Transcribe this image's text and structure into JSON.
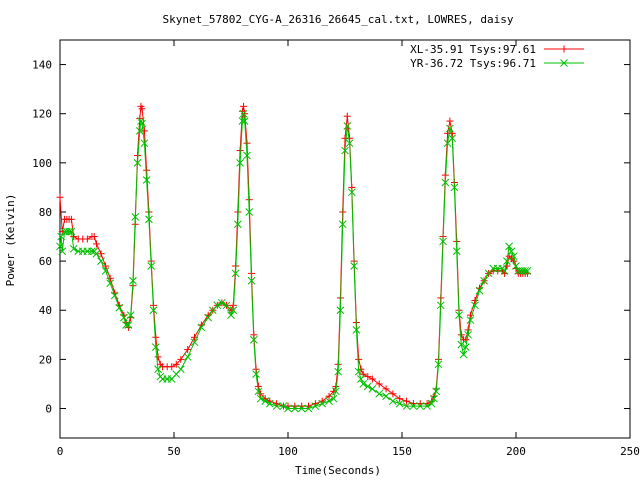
{
  "chart_data": {
    "type": "line",
    "title": "Skynet_57802_CYG-A_26316_26645_cal.txt, LOWRES, daisy",
    "xlabel": "Time(Seconds)",
    "ylabel": "Power (Kelvin)",
    "xlim": [
      0,
      250
    ],
    "ylim": [
      -12,
      150
    ],
    "xticks": [
      0,
      50,
      100,
      150,
      200,
      250
    ],
    "yticks": [
      0,
      20,
      40,
      60,
      80,
      100,
      120,
      140
    ],
    "grid": false,
    "legend_position": "top-right",
    "series": [
      {
        "name": "XL-35.91 Tsys:97.61",
        "color": "#ff0000",
        "marker": "plus",
        "points": [
          [
            0,
            86
          ],
          [
            1,
            72
          ],
          [
            2,
            77
          ],
          [
            3,
            77
          ],
          [
            4,
            77
          ],
          [
            5,
            77
          ],
          [
            6,
            70
          ],
          [
            8,
            69
          ],
          [
            10,
            69
          ],
          [
            12,
            69
          ],
          [
            14,
            70
          ],
          [
            15,
            70
          ],
          [
            16,
            67
          ],
          [
            18,
            63
          ],
          [
            20,
            58
          ],
          [
            22,
            53
          ],
          [
            24,
            47
          ],
          [
            26,
            42
          ],
          [
            28,
            38
          ],
          [
            29,
            35
          ],
          [
            30,
            33
          ],
          [
            31,
            37
          ],
          [
            32,
            50
          ],
          [
            33,
            75
          ],
          [
            34,
            103
          ],
          [
            35,
            118
          ],
          [
            35.5,
            123
          ],
          [
            36,
            122
          ],
          [
            37,
            113
          ],
          [
            38,
            97
          ],
          [
            39,
            80
          ],
          [
            40,
            60
          ],
          [
            41,
            42
          ],
          [
            42,
            29
          ],
          [
            43,
            21
          ],
          [
            44,
            18
          ],
          [
            45,
            17
          ],
          [
            47,
            17
          ],
          [
            49,
            17
          ],
          [
            51,
            18
          ],
          [
            53,
            20
          ],
          [
            56,
            24
          ],
          [
            59,
            29
          ],
          [
            62,
            34
          ],
          [
            65,
            38
          ],
          [
            67,
            40
          ],
          [
            69,
            42
          ],
          [
            71,
            43
          ],
          [
            73,
            42
          ],
          [
            75,
            40
          ],
          [
            76,
            42
          ],
          [
            77,
            58
          ],
          [
            78,
            80
          ],
          [
            79,
            105
          ],
          [
            80,
            121
          ],
          [
            80.5,
            123
          ],
          [
            81,
            120
          ],
          [
            82,
            108
          ],
          [
            83,
            85
          ],
          [
            84,
            55
          ],
          [
            85,
            30
          ],
          [
            86,
            16
          ],
          [
            87,
            9
          ],
          [
            88,
            6
          ],
          [
            90,
            4
          ],
          [
            92,
            3
          ],
          [
            95,
            2
          ],
          [
            98,
            1
          ],
          [
            100,
            1
          ],
          [
            103,
            1
          ],
          [
            106,
            1
          ],
          [
            109,
            1
          ],
          [
            112,
            2
          ],
          [
            115,
            3
          ],
          [
            118,
            5
          ],
          [
            120,
            7
          ],
          [
            121,
            9
          ],
          [
            122,
            18
          ],
          [
            123,
            45
          ],
          [
            124,
            80
          ],
          [
            125,
            110
          ],
          [
            126,
            119
          ],
          [
            127,
            110
          ],
          [
            128,
            90
          ],
          [
            129,
            60
          ],
          [
            130,
            35
          ],
          [
            131,
            20
          ],
          [
            132,
            16
          ],
          [
            133,
            14
          ],
          [
            135,
            13
          ],
          [
            137,
            12
          ],
          [
            140,
            10
          ],
          [
            143,
            8
          ],
          [
            146,
            6
          ],
          [
            149,
            4
          ],
          [
            152,
            3
          ],
          [
            155,
            2
          ],
          [
            158,
            2
          ],
          [
            161,
            2
          ],
          [
            163,
            3
          ],
          [
            164,
            5
          ],
          [
            165,
            8
          ],
          [
            166,
            20
          ],
          [
            167,
            45
          ],
          [
            168,
            70
          ],
          [
            169,
            95
          ],
          [
            170,
            112
          ],
          [
            171,
            117
          ],
          [
            172,
            112
          ],
          [
            173,
            92
          ],
          [
            174,
            68
          ],
          [
            175,
            40
          ],
          [
            176,
            30
          ],
          [
            177,
            28
          ],
          [
            178,
            28
          ],
          [
            179,
            32
          ],
          [
            180,
            38
          ],
          [
            182,
            44
          ],
          [
            184,
            49
          ],
          [
            186,
            52
          ],
          [
            188,
            55
          ],
          [
            190,
            56
          ],
          [
            192,
            56
          ],
          [
            194,
            56
          ],
          [
            195,
            55
          ],
          [
            196,
            58
          ],
          [
            197,
            62
          ],
          [
            198,
            61
          ],
          [
            199,
            60
          ],
          [
            200,
            57
          ],
          [
            201,
            55
          ],
          [
            202,
            55
          ],
          [
            203,
            55
          ],
          [
            204,
            55
          ],
          [
            205,
            55
          ]
        ]
      },
      {
        "name": "YR-36.72 Tsys:96.71",
        "color": "#00c000",
        "marker": "cross",
        "points": [
          [
            0,
            66
          ],
          [
            0.5,
            70
          ],
          [
            1,
            64
          ],
          [
            2,
            72
          ],
          [
            3,
            72
          ],
          [
            4,
            72
          ],
          [
            5,
            72
          ],
          [
            6,
            65
          ],
          [
            8,
            64
          ],
          [
            10,
            64
          ],
          [
            12,
            64
          ],
          [
            14,
            64
          ],
          [
            15,
            64
          ],
          [
            16,
            63
          ],
          [
            18,
            60
          ],
          [
            20,
            56
          ],
          [
            22,
            51
          ],
          [
            24,
            46
          ],
          [
            26,
            41
          ],
          [
            28,
            37
          ],
          [
            29,
            34
          ],
          [
            30,
            34
          ],
          [
            31,
            38
          ],
          [
            32,
            52
          ],
          [
            33,
            78
          ],
          [
            34,
            100
          ],
          [
            35,
            113
          ],
          [
            35.5,
            117
          ],
          [
            36,
            116
          ],
          [
            37,
            108
          ],
          [
            38,
            93
          ],
          [
            39,
            77
          ],
          [
            40,
            58
          ],
          [
            41,
            40
          ],
          [
            42,
            25
          ],
          [
            43,
            16
          ],
          [
            44,
            13
          ],
          [
            45,
            12
          ],
          [
            47,
            12
          ],
          [
            49,
            12
          ],
          [
            51,
            14
          ],
          [
            53,
            16
          ],
          [
            56,
            21
          ],
          [
            59,
            27
          ],
          [
            62,
            33
          ],
          [
            65,
            37
          ],
          [
            67,
            40
          ],
          [
            69,
            42
          ],
          [
            71,
            43
          ],
          [
            73,
            42
          ],
          [
            75,
            38
          ],
          [
            76,
            40
          ],
          [
            77,
            55
          ],
          [
            78,
            75
          ],
          [
            79,
            100
          ],
          [
            80,
            117
          ],
          [
            80.5,
            120
          ],
          [
            81,
            117
          ],
          [
            82,
            103
          ],
          [
            83,
            80
          ],
          [
            84,
            52
          ],
          [
            85,
            28
          ],
          [
            86,
            14
          ],
          [
            87,
            7
          ],
          [
            88,
            4
          ],
          [
            90,
            3
          ],
          [
            92,
            2
          ],
          [
            95,
            1
          ],
          [
            98,
            1
          ],
          [
            100,
            0
          ],
          [
            103,
            0
          ],
          [
            106,
            0
          ],
          [
            109,
            0
          ],
          [
            112,
            1
          ],
          [
            115,
            2
          ],
          [
            118,
            3
          ],
          [
            120,
            4
          ],
          [
            121,
            7
          ],
          [
            122,
            15
          ],
          [
            123,
            40
          ],
          [
            124,
            75
          ],
          [
            125,
            105
          ],
          [
            126,
            115
          ],
          [
            127,
            108
          ],
          [
            128,
            88
          ],
          [
            129,
            58
          ],
          [
            130,
            32
          ],
          [
            131,
            15
          ],
          [
            132,
            12
          ],
          [
            133,
            10
          ],
          [
            135,
            9
          ],
          [
            137,
            8
          ],
          [
            140,
            6
          ],
          [
            143,
            5
          ],
          [
            146,
            3
          ],
          [
            149,
            2
          ],
          [
            152,
            1
          ],
          [
            155,
            1
          ],
          [
            158,
            1
          ],
          [
            161,
            1
          ],
          [
            163,
            2
          ],
          [
            164,
            4
          ],
          [
            165,
            7
          ],
          [
            166,
            18
          ],
          [
            167,
            42
          ],
          [
            168,
            68
          ],
          [
            169,
            92
          ],
          [
            170,
            108
          ],
          [
            171,
            114
          ],
          [
            172,
            110
          ],
          [
            173,
            90
          ],
          [
            174,
            64
          ],
          [
            175,
            38
          ],
          [
            176,
            26
          ],
          [
            177,
            22
          ],
          [
            178,
            25
          ],
          [
            179,
            30
          ],
          [
            180,
            36
          ],
          [
            182,
            42
          ],
          [
            184,
            48
          ],
          [
            186,
            52
          ],
          [
            188,
            55
          ],
          [
            190,
            57
          ],
          [
            192,
            57
          ],
          [
            194,
            57
          ],
          [
            195,
            56
          ],
          [
            196,
            60
          ],
          [
            197,
            66
          ],
          [
            198,
            64
          ],
          [
            199,
            62
          ],
          [
            200,
            58
          ],
          [
            201,
            56
          ],
          [
            202,
            56
          ],
          [
            203,
            56
          ],
          [
            204,
            56
          ],
          [
            205,
            56
          ]
        ]
      }
    ]
  }
}
